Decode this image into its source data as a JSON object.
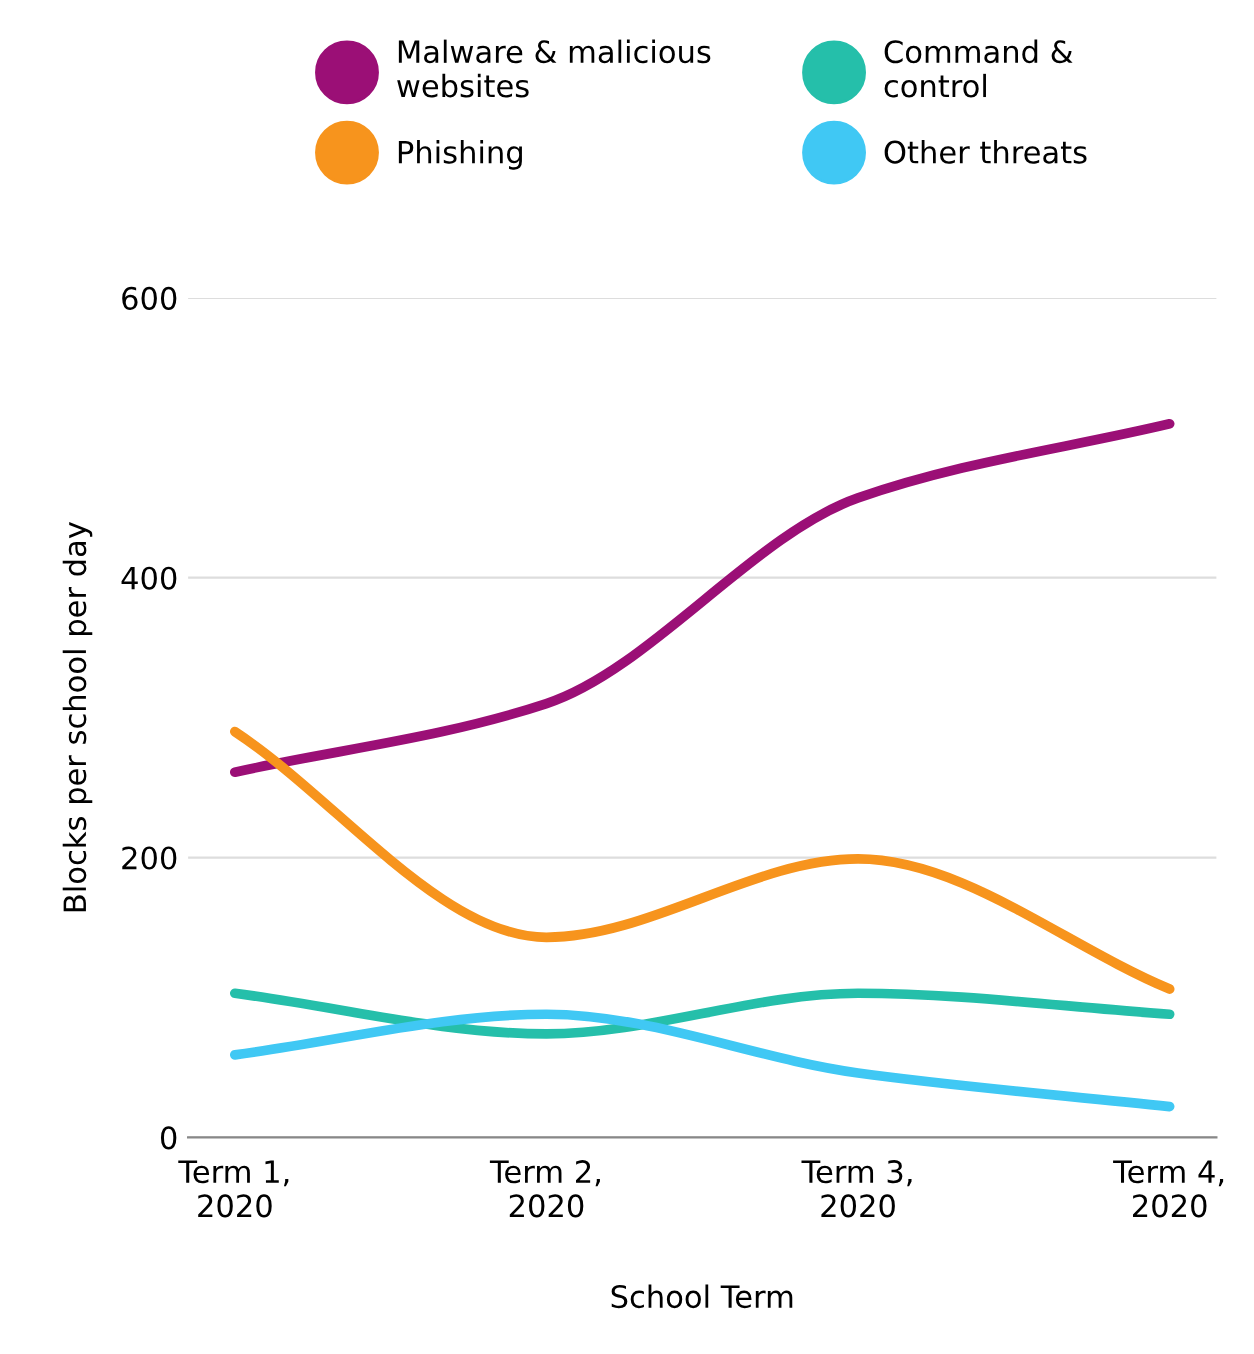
{
  "chart_data": {
    "type": "line",
    "xlabel": "School Term",
    "ylabel": "Blocks per school per day",
    "categories": [
      "Term 1,\n2020",
      "Term 2,\n2020",
      "Term 3,\n2020",
      "Term 4,\n2020"
    ],
    "series": [
      {
        "name": "Malware & malicious\nwebsites",
        "color": "#9b0f76",
        "values": [
          261,
          310,
          457,
          510
        ]
      },
      {
        "name": "Command &\ncontrol",
        "color": "#25bfaa",
        "values": [
          103,
          74,
          103,
          88
        ]
      },
      {
        "name": "Phishing",
        "color": "#f7941d",
        "values": [
          290,
          143,
          199,
          106
        ]
      },
      {
        "name": "Other threats",
        "color": "#40c8f4",
        "values": [
          59,
          88,
          46,
          22
        ]
      }
    ],
    "ylim": [
      0,
      600
    ],
    "yticks": [
      0,
      200,
      400,
      600
    ],
    "grid": "y",
    "legend": "top",
    "marker": "none",
    "line_style": "solid"
  }
}
